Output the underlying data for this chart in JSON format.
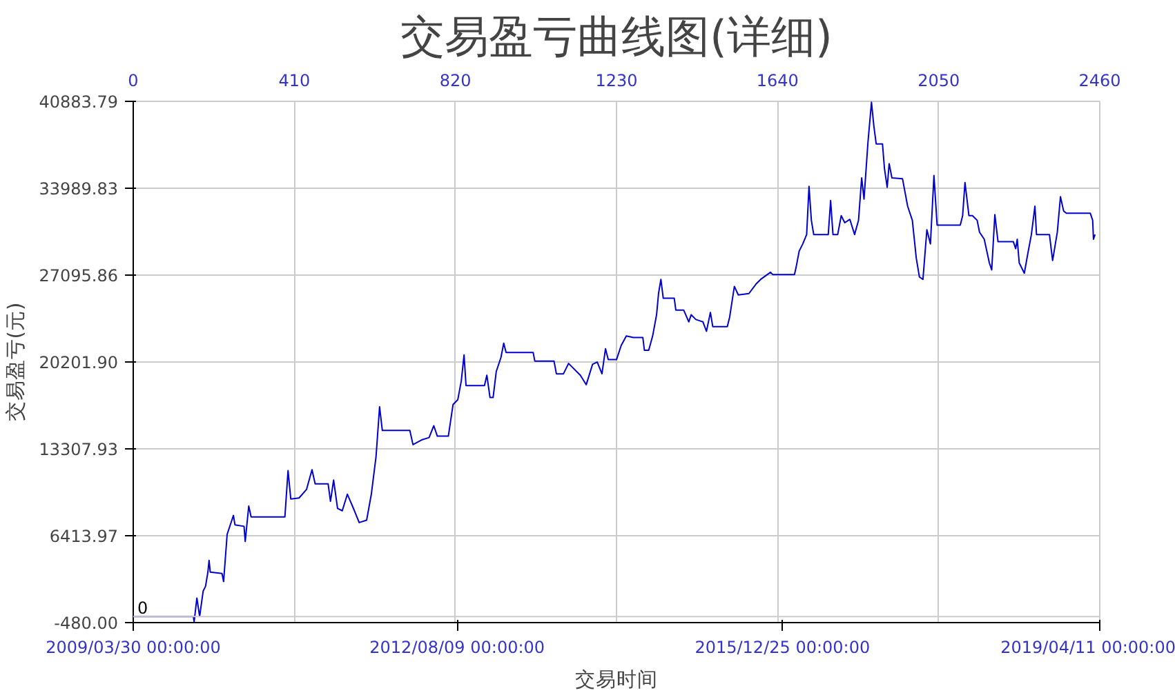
{
  "chart_data": {
    "type": "line",
    "title": "交易盈亏曲线图(详细)",
    "xlabel": "交易时间",
    "ylabel": "交易盈亏(元)",
    "x": [
      0,
      153,
      155,
      162,
      169,
      178,
      184,
      190,
      193,
      196,
      226,
      230,
      239,
      247,
      255,
      259,
      282,
      285,
      294,
      300,
      386,
      394,
      401,
      422,
      441,
      455,
      463,
      496,
      502,
      510,
      520,
      532,
      545,
      563,
      575,
      594,
      606,
      618,
      627,
      634,
      704,
      712,
      734,
      753,
      765,
      774,
      802,
      814,
      826,
      835,
      842,
      847,
      894,
      900,
      908,
      916,
      924,
      936,
      943,
      949,
      1018,
      1022,
      1071,
      1077,
      1095,
      1108,
      1138,
      1153,
      1169,
      1181,
      1193,
      1202,
      1209,
      1230,
      1242,
      1255,
      1273,
      1297,
      1301,
      1312,
      1322,
      1332,
      1337,
      1343,
      1349,
      1377,
      1381,
      1401,
      1414,
      1420,
      1432,
      1450,
      1459,
      1469,
      1475,
      1512,
      1518,
      1530,
      1540,
      1567,
      1585,
      1597,
      1622,
      1628,
      1683,
      1687,
      1695,
      1704,
      1714,
      1720,
      1726,
      1732,
      1769,
      1775,
      1781,
      1793,
      1802,
      1811,
      1824,
      1836,
      1846,
      1854,
      1860,
      1870,
      1879,
      1885,
      1891,
      1907,
      1912,
      1919,
      1924,
      1931,
      1958,
      1971,
      1983,
      1993,
      2001,
      2010,
      2020,
      2029,
      2038,
      2046,
      2105,
      2111,
      2117,
      2127,
      2136,
      2148,
      2154,
      2166,
      2179,
      2185,
      2193,
      2201,
      2240,
      2246,
      2250,
      2255,
      2268,
      2277,
      2286,
      2295,
      2299,
      2332,
      2340,
      2352,
      2360,
      2368,
      2375,
      2436,
      2442,
      2444,
      2448
    ],
    "series": [
      {
        "color": "#0000cc",
        "values": [
          0,
          0,
          -410,
          1465,
          0,
          2027,
          2402,
          3526,
          4463,
          3526,
          3413,
          2776,
          6523,
          7273,
          8022,
          7273,
          7160,
          5960,
          8770,
          7909,
          7909,
          11581,
          9333,
          9408,
          10083,
          11656,
          10532,
          10532,
          9146,
          10832,
          8584,
          8397,
          9708,
          8397,
          7460,
          7647,
          9708,
          12706,
          16640,
          14767,
          14767,
          13642,
          14017,
          14205,
          15142,
          14317,
          14317,
          16827,
          17202,
          18701,
          20761,
          18326,
          18326,
          19150,
          17389,
          17389,
          19450,
          20574,
          21698,
          20949,
          20949,
          20275,
          20275,
          19263,
          19263,
          20088,
          19150,
          18401,
          20013,
          20200,
          19263,
          21249,
          20387,
          20387,
          21513,
          22262,
          22150,
          22150,
          21137,
          21137,
          22262,
          23947,
          25633,
          26758,
          25259,
          25259,
          24322,
          24322,
          23385,
          23947,
          23572,
          23385,
          22636,
          24135,
          23011,
          23011,
          23760,
          26196,
          25521,
          25633,
          26383,
          26758,
          27320,
          27132,
          27132,
          27694,
          29006,
          29567,
          30317,
          34139,
          31441,
          30317,
          30317,
          33015,
          30317,
          30317,
          31816,
          31254,
          31516,
          30317,
          31441,
          34813,
          33127,
          37624,
          40809,
          38935,
          37511,
          37511,
          35563,
          34064,
          35937,
          34813,
          34738,
          32565,
          31441,
          28443,
          26945,
          26758,
          30692,
          29567,
          35001,
          31067,
          31067,
          31816,
          34439,
          31816,
          31816,
          31441,
          30504,
          29942,
          28069,
          27506,
          31891,
          29755,
          29755,
          29193,
          29942,
          28069,
          27245,
          28818,
          30317,
          32565,
          30317,
          30317,
          28256,
          30504,
          33314,
          32190,
          32003,
          32003,
          31441,
          29942,
          30317
        ]
      }
    ],
    "xlim": [
      0,
      2460
    ],
    "x2ticks": [
      {
        "value": "2009-03-30",
        "label": "2009/03/30 00:00:00"
      },
      {
        "value": "2012-08-09",
        "label": "2012/08/09 00:00:00"
      },
      {
        "value": "2015-12-25",
        "label": "2015/12/25 00:00:00"
      },
      {
        "value": "2019-04-11",
        "label": "2019/04/11 00:00:00"
      }
    ],
    "x2lim": [
      "2009-03-30",
      "2019-04-11"
    ],
    "xticks": [
      0,
      410,
      820,
      1230,
      1640,
      2050,
      2460
    ],
    "ref_lines": [
      {
        "axis": "y",
        "value": 0,
        "label": "0",
        "color": "#cccccc"
      }
    ],
    "ylim": [
      -480,
      40883.79
    ],
    "yticks": [
      {
        "value": -480,
        "label": "-480.00"
      },
      {
        "value": 6413.97,
        "label": "6413.97"
      },
      {
        "value": 13307.93,
        "label": "13307.93"
      },
      {
        "value": 20201.9,
        "label": "20201.90"
      },
      {
        "value": 27095.86,
        "label": "27095.86"
      },
      {
        "value": 33989.83,
        "label": "33989.83"
      },
      {
        "value": 40883.79,
        "label": "40883.79"
      }
    ],
    "grid": true,
    "marker": "none",
    "line_style": "solid"
  }
}
